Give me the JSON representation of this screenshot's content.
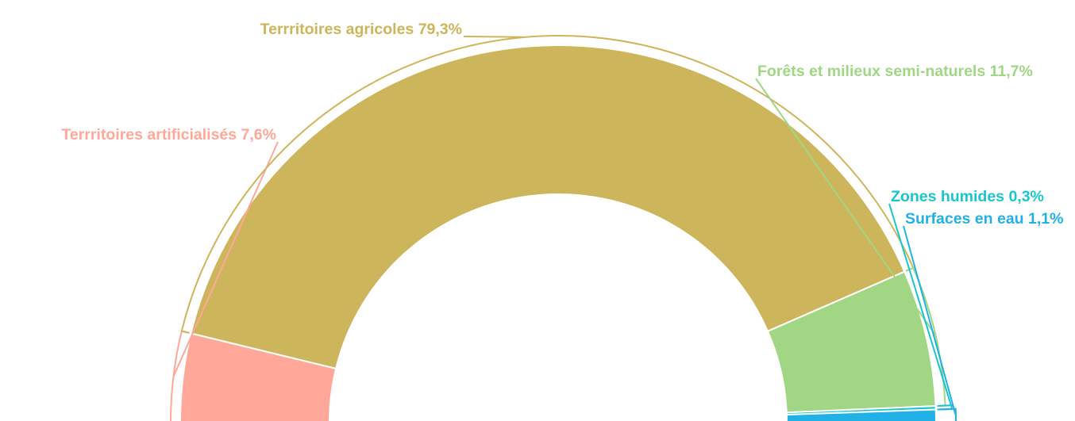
{
  "chart_data": {
    "type": "pie",
    "variant": "half-donut",
    "value_suffix": "%",
    "slices": [
      {
        "key": "artif",
        "label": "Terrritoires artificialisés 7,6%",
        "value": 7.6,
        "color": "#ffa899"
      },
      {
        "key": "agri",
        "label": "Terrritoires agricoles 79,3%",
        "value": 79.3,
        "color": "#cdb55b"
      },
      {
        "key": "forets",
        "label": "Forêts et milieux semi-naturels 11,7%",
        "value": 11.7,
        "color": "#a1d784"
      },
      {
        "key": "humides",
        "label": "Zones humides 0,3%",
        "value": 0.3,
        "color": "#1ac5cc"
      },
      {
        "key": "eau",
        "label": "Surfaces en eau 1,1%",
        "value": 1.1,
        "color": "#22b1e6"
      }
    ]
  }
}
